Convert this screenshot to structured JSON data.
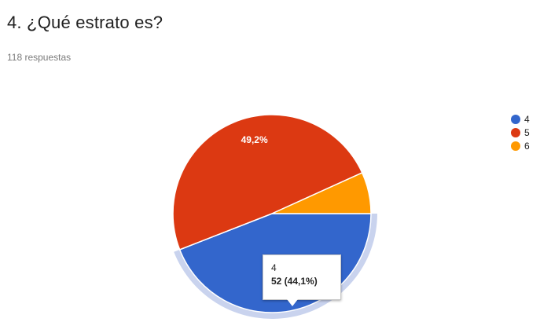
{
  "question": {
    "title": "4. ¿Qué estrato es?",
    "responses": "118 respuestas"
  },
  "chart_data": {
    "type": "pie",
    "total": 118,
    "slices": [
      {
        "label": "4",
        "value": 52,
        "percent": "44,1%",
        "color": "#3366cc",
        "highlighted": true
      },
      {
        "label": "5",
        "value": 58,
        "percent": "49,2%",
        "color": "#dc3912",
        "slice_label": "49,2%"
      },
      {
        "label": "6",
        "value": 8,
        "percent": "6,8%",
        "color": "#ff9900"
      }
    ],
    "legend": {
      "placement": "right",
      "items": [
        "4",
        "5",
        "6"
      ]
    },
    "tooltip": {
      "category": "4",
      "value_text": "52 (44,1%)"
    }
  }
}
